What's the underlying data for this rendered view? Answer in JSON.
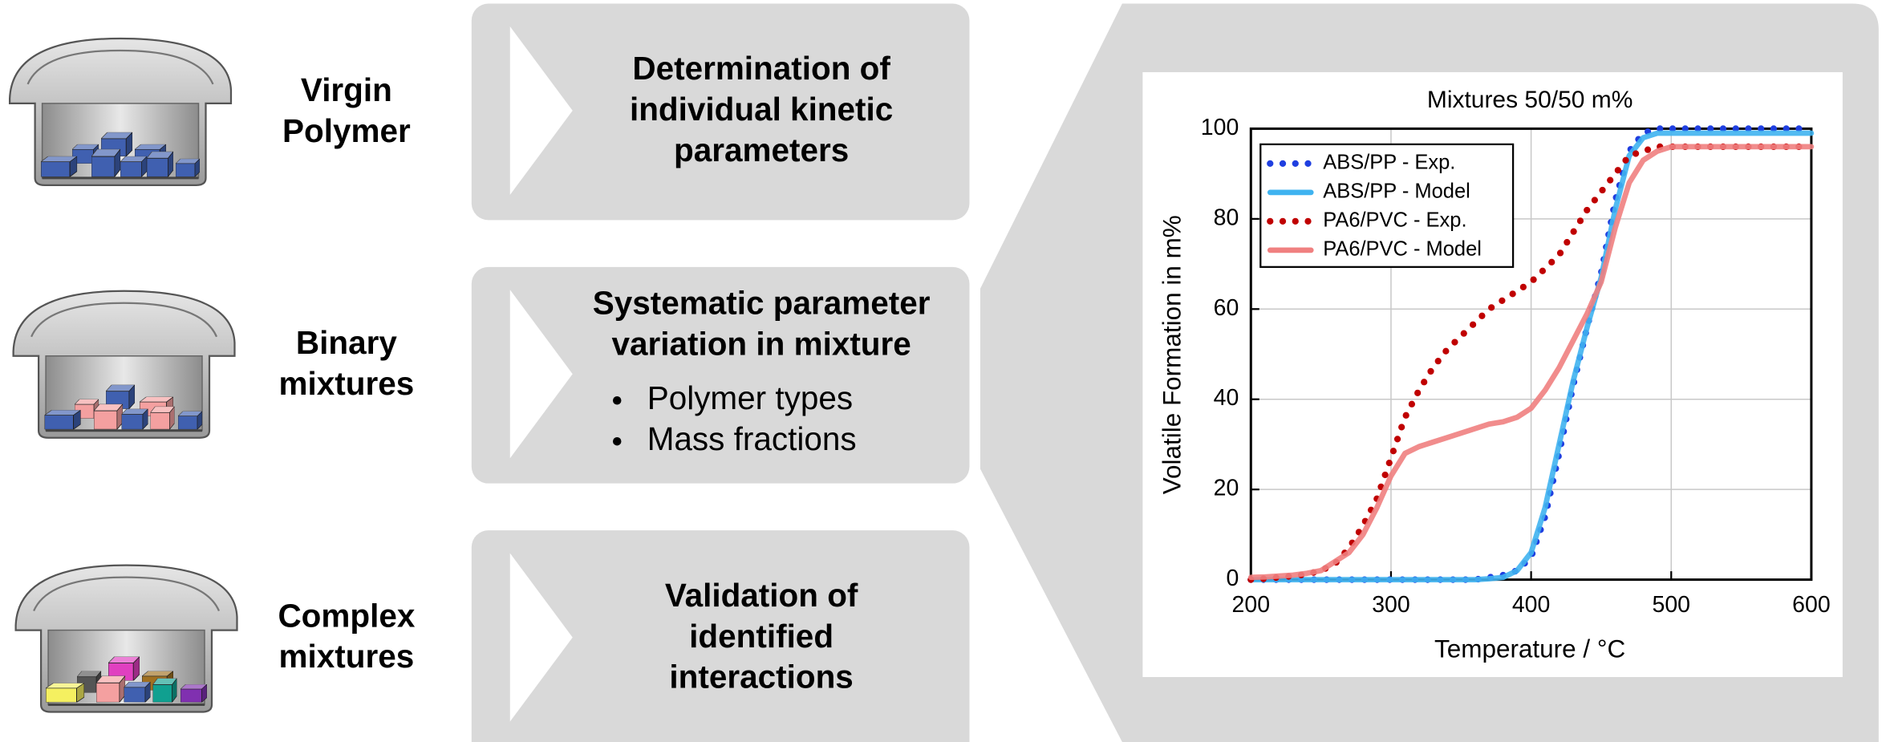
{
  "rows": [
    {
      "label": [
        "Virgin",
        "Polymer"
      ],
      "box": [
        "Determination of",
        "individual kinetic",
        "parameters"
      ]
    },
    {
      "label": [
        "Binary",
        "mixtures"
      ],
      "box": [
        "Systematic parameter",
        "variation in mixture"
      ],
      "bullets": [
        "Polymer types",
        "Mass fractions"
      ]
    },
    {
      "label": [
        "Complex",
        "mixtures"
      ],
      "box": [
        "Validation of",
        "identified",
        "interactions"
      ]
    }
  ],
  "chart_data": {
    "type": "line",
    "title": "Mixtures 50/50 m%",
    "xlabel": "Temperature / °C",
    "ylabel": "Volatile Formation in m%",
    "x": [
      200,
      210,
      220,
      230,
      240,
      250,
      260,
      270,
      280,
      290,
      300,
      310,
      320,
      330,
      340,
      350,
      360,
      370,
      380,
      390,
      400,
      410,
      420,
      430,
      440,
      450,
      460,
      470,
      480,
      490,
      500,
      510,
      520,
      530,
      540,
      550,
      560,
      570,
      580,
      590,
      600
    ],
    "xlim": [
      200,
      600
    ],
    "ylim": [
      0,
      100
    ],
    "xticks": [
      200,
      300,
      400,
      500,
      600
    ],
    "yticks": [
      0,
      20,
      40,
      60,
      80,
      100
    ],
    "grid": true,
    "legend": "upper left",
    "series": [
      {
        "name": "ABS/PP - Exp.",
        "color": "#1f3fe0",
        "style": "dotted",
        "values": [
          0,
          0,
          0,
          0,
          0,
          0,
          0,
          0,
          0,
          0,
          0,
          0,
          0,
          0,
          0,
          0,
          0,
          0.5,
          1,
          2,
          5,
          14,
          28,
          43,
          56,
          68,
          84,
          95,
          99,
          100,
          100,
          100,
          100,
          100,
          100,
          100,
          100,
          100,
          100,
          100,
          100
        ]
      },
      {
        "name": "ABS/PP - Model",
        "color": "#3fb3f0",
        "style": "solid",
        "values": [
          0,
          0,
          0,
          0,
          0,
          0,
          0,
          0,
          0,
          0,
          0,
          0,
          0,
          0,
          0,
          0,
          0,
          0.2,
          0.5,
          2,
          6,
          16,
          30,
          44,
          56,
          67,
          82,
          94,
          98,
          99,
          99,
          99,
          99,
          99,
          99,
          99,
          99,
          99,
          99,
          99,
          99
        ]
      },
      {
        "name": "PA6/PVC - Exp.",
        "color": "#c00000",
        "style": "dotted",
        "values": [
          0,
          0.2,
          0.5,
          0.8,
          1.2,
          2,
          3.5,
          7,
          12,
          18,
          27,
          36,
          42,
          47,
          51,
          54,
          57,
          60,
          62,
          64,
          66,
          69,
          72,
          77,
          82,
          86,
          90,
          94,
          95,
          96,
          96,
          96,
          96,
          96,
          96,
          96,
          96,
          96,
          96,
          96,
          96
        ]
      },
      {
        "name": "PA6/PVC - Model",
        "color": "#f08080",
        "style": "solid",
        "values": [
          0.5,
          0.6,
          0.8,
          1,
          1.4,
          2,
          4,
          6,
          10,
          16,
          23,
          28,
          29.5,
          30.5,
          31.5,
          32.5,
          33.5,
          34.5,
          35,
          36,
          38,
          42,
          47,
          53,
          59,
          66,
          78,
          88,
          93,
          95,
          96,
          96,
          96,
          96,
          96,
          96,
          96,
          96,
          96,
          96,
          96
        ]
      }
    ]
  }
}
